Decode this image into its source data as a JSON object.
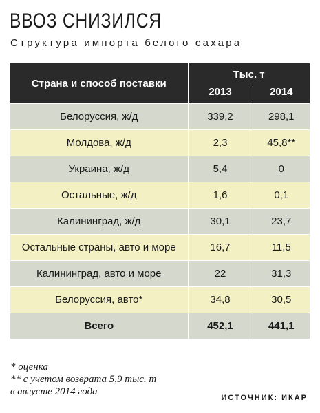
{
  "header": {
    "title": "ВВОЗ СНИЗИЛСЯ",
    "subtitle": "Структура импорта белого сахара"
  },
  "table": {
    "column_header": "Страна и способ поставки",
    "unit_header": "Тыс. т",
    "years": [
      "2013",
      "2014"
    ],
    "rows": [
      [
        "Белоруссия, ж/д",
        "339,2",
        "298,1"
      ],
      [
        "Молдова, ж/д",
        "2,3",
        "45,8**"
      ],
      [
        "Украина, ж/д",
        "5,4",
        "0"
      ],
      [
        "Остальные, ж/д",
        "1,6",
        "0,1"
      ],
      [
        "Калининград, ж/д",
        "30,1",
        "23,7"
      ],
      [
        "Остальные страны, авто и море",
        "16,7",
        "11,5"
      ],
      [
        "Калининград, авто и море",
        "22",
        "31,3"
      ],
      [
        "Белоруссия, авто*",
        "34,8",
        "30,5"
      ]
    ],
    "total": [
      "Всего",
      "452,1",
      "441,1"
    ]
  },
  "footnotes": [
    "* оценка",
    "** с учетом возврата 5,9 тыс. т",
    "в августе 2014 года"
  ],
  "source": "ИСТОЧНИК: ИКАР"
}
